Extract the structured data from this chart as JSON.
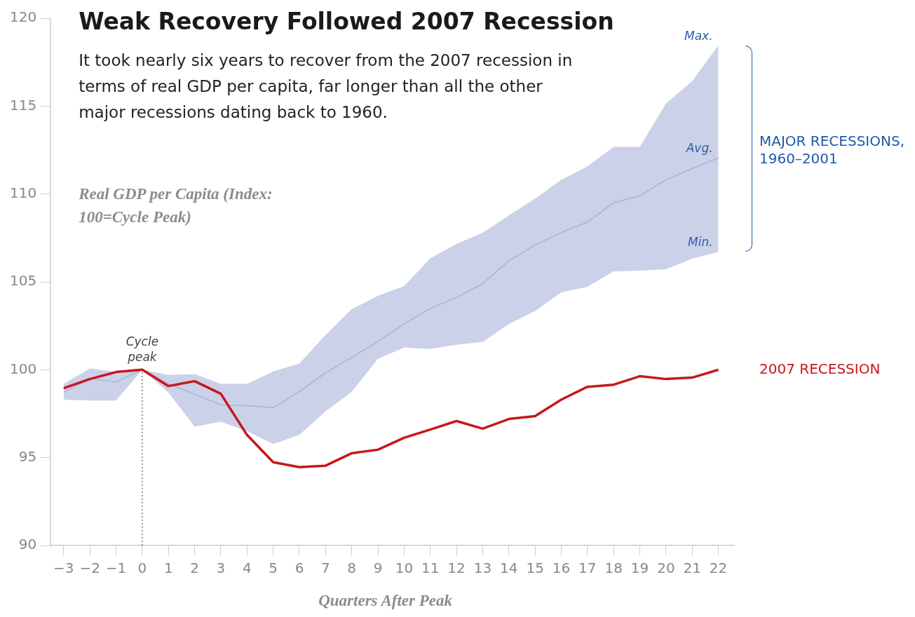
{
  "chart_data": {
    "type": "line",
    "title": "Weak Recovery Followed 2007 Recession",
    "subtitle": "It took nearly six years to recover from the 2007 recession in terms of real GDP per capita, far longer than all the other major recessions dating back to 1960.",
    "xlabel": "Quarters After Peak",
    "ylabel": "Real GDP per Capita (Index: 100=Cycle Peak)",
    "x": [
      -3,
      -2,
      -1,
      0,
      1,
      2,
      3,
      4,
      5,
      6,
      7,
      8,
      9,
      10,
      11,
      12,
      13,
      14,
      15,
      16,
      17,
      18,
      19,
      20,
      21,
      22
    ],
    "series": [
      {
        "name": "MAJOR RECESSIONS, 1960–2001",
        "color": "#a8b2d8",
        "values": [
          98.7,
          99.5,
          99.3,
          100,
          99.2,
          98.6,
          98.0,
          97.96,
          97.84,
          98.75,
          99.83,
          100.7,
          101.6,
          102.6,
          103.5,
          104.1,
          104.9,
          106.2,
          107.1,
          107.8,
          108.4,
          109.5,
          109.9,
          110.8,
          111.45,
          112.05
        ],
        "lower": [
          98.3,
          98.25,
          98.25,
          100,
          98.7,
          96.76,
          97.04,
          96.5,
          95.77,
          96.29,
          97.64,
          98.75,
          100.62,
          101.26,
          101.18,
          101.42,
          101.58,
          102.61,
          103.33,
          104.4,
          104.72,
          105.6,
          105.64,
          105.72,
          106.32,
          106.7
        ],
        "upper": [
          99.2,
          100.07,
          99.87,
          100,
          99.7,
          99.75,
          99.2,
          99.2,
          99.9,
          100.35,
          101.98,
          103.45,
          104.2,
          104.76,
          106.35,
          107.15,
          107.79,
          108.78,
          109.74,
          110.8,
          111.57,
          112.68,
          112.68,
          115.15,
          116.42,
          118.45
        ]
      },
      {
        "name": "2007 RECESSION",
        "color": "#c8161d",
        "values": [
          98.95,
          99.47,
          99.87,
          100,
          99.07,
          99.35,
          98.63,
          96.29,
          94.74,
          94.46,
          94.54,
          95.25,
          95.45,
          96.13,
          96.6,
          97.08,
          96.65,
          97.2,
          97.36,
          98.3,
          99.03,
          99.15,
          99.63,
          99.47,
          99.55,
          100
        ]
      }
    ],
    "xlim": [
      -3.5,
      22.6
    ],
    "ylim": [
      90,
      120
    ],
    "xticks": [
      {
        "value": -3,
        "label": "−3"
      },
      {
        "value": -2,
        "label": "−2"
      },
      {
        "value": -1,
        "label": "−1"
      },
      0,
      1,
      2,
      3,
      4,
      5,
      6,
      7,
      8,
      9,
      10,
      11,
      12,
      13,
      14,
      15,
      16,
      17,
      18,
      19,
      20,
      21,
      22
    ],
    "yticks": [
      90,
      95,
      100,
      105,
      110,
      115,
      120
    ],
    "ref_lines": [
      {
        "axis": "x",
        "value": 0,
        "label": "Cycle peak",
        "line_style": "dotted",
        "color": "#333333"
      }
    ],
    "annotations": [
      "Max.",
      "Avg.",
      "Min."
    ],
    "grid": false,
    "legend": false,
    "marker": "none",
    "line_style": "solid"
  }
}
